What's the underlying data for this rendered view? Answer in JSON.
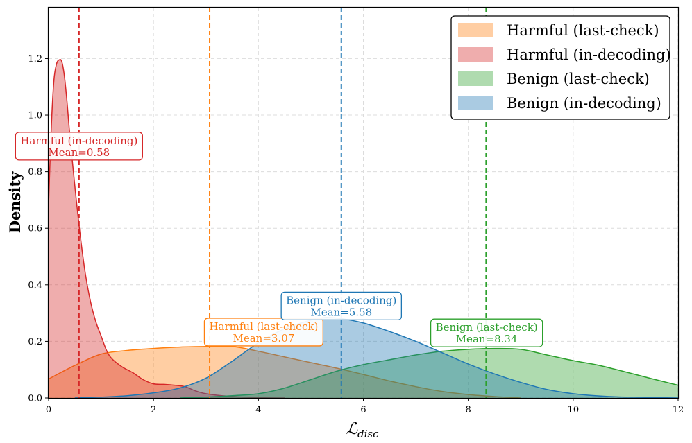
{
  "chart_data": {
    "type": "area",
    "xlabel": "ℒ",
    "xlabel_sub": "disc",
    "ylabel": "Density",
    "xlim": [
      0,
      12
    ],
    "ylim": [
      0,
      1.38
    ],
    "xticks": [
      0,
      2,
      4,
      6,
      8,
      10,
      12
    ],
    "yticks": [
      0.0,
      0.2,
      0.4,
      0.6,
      0.8,
      1.0,
      1.2
    ],
    "xtick_labels": [
      "0",
      "2",
      "4",
      "6",
      "8",
      "10",
      "12"
    ],
    "ytick_labels": [
      "0.0",
      "0.2",
      "0.4",
      "0.6",
      "0.8",
      "1.0",
      "1.2"
    ],
    "grid": true,
    "legend_position": "top-right",
    "series": [
      {
        "name": "Harmful (last-check)",
        "color": "#ff7f0e",
        "mean": 3.07,
        "mean_label": "Mean=3.07",
        "anno_title": "Harmful (last-check)",
        "anno_at": [
          4.1,
          0.233
        ],
        "x": [
          0,
          0.5,
          1.0,
          1.5,
          2.0,
          2.5,
          3.0,
          3.5,
          4.0,
          4.5,
          5.0,
          5.5,
          6.0,
          6.5,
          7.0,
          7.5,
          8.0,
          8.5,
          9.0
        ],
        "y": [
          0.067,
          0.115,
          0.155,
          0.168,
          0.175,
          0.18,
          0.182,
          0.182,
          0.165,
          0.145,
          0.125,
          0.105,
          0.083,
          0.06,
          0.04,
          0.023,
          0.012,
          0.005,
          0.0
        ]
      },
      {
        "name": "Harmful (in-decoding)",
        "color": "#d62728",
        "mean": 0.58,
        "mean_label": "Mean=0.58",
        "anno_title": "Harmful (in-decoding)",
        "anno_at": [
          0.58,
          0.89
        ],
        "x": [
          0,
          0.05,
          0.1,
          0.15,
          0.2,
          0.25,
          0.3,
          0.35,
          0.4,
          0.5,
          0.6,
          0.7,
          0.8,
          0.9,
          1.0,
          1.1,
          1.2,
          1.4,
          1.6,
          1.8,
          2.0,
          2.2,
          2.4,
          2.6,
          2.8,
          3.0,
          3.3,
          3.6,
          4.0,
          4.5
        ],
        "y": [
          0.68,
          0.95,
          1.12,
          1.18,
          1.195,
          1.19,
          1.14,
          1.05,
          0.94,
          0.75,
          0.58,
          0.44,
          0.34,
          0.27,
          0.22,
          0.17,
          0.14,
          0.11,
          0.09,
          0.065,
          0.05,
          0.048,
          0.045,
          0.04,
          0.025,
          0.015,
          0.008,
          0.004,
          0.001,
          0.0
        ]
      },
      {
        "name": "Benign (last-check)",
        "color": "#2ca02c",
        "mean": 8.34,
        "mean_label": "Mean=8.34",
        "anno_title": "Benign (last-check)",
        "anno_at": [
          8.35,
          0.23
        ],
        "x": [
          2.5,
          3.0,
          3.5,
          4.0,
          4.5,
          5.0,
          5.5,
          6.0,
          6.5,
          7.0,
          7.5,
          8.0,
          8.5,
          9.0,
          9.5,
          10.0,
          10.5,
          11.0,
          11.5,
          12.0
        ],
        "y": [
          0.0,
          0.003,
          0.008,
          0.015,
          0.035,
          0.065,
          0.095,
          0.118,
          0.135,
          0.152,
          0.165,
          0.172,
          0.175,
          0.172,
          0.152,
          0.132,
          0.115,
          0.092,
          0.068,
          0.045
        ]
      },
      {
        "name": "Benign (in-decoding)",
        "color": "#1f77b4",
        "mean": 5.58,
        "mean_label": "Mean=5.58",
        "anno_title": "Benign (in-decoding)",
        "anno_at": [
          5.58,
          0.325
        ],
        "x": [
          0.5,
          1.0,
          1.5,
          2.0,
          2.5,
          3.0,
          3.5,
          4.0,
          4.5,
          5.0,
          5.3,
          5.6,
          6.0,
          6.5,
          7.0,
          7.5,
          8.0,
          8.5,
          9.0,
          9.5,
          10.0,
          10.5,
          11.0,
          12.0
        ],
        "y": [
          0.0,
          0.003,
          0.008,
          0.018,
          0.035,
          0.07,
          0.13,
          0.195,
          0.245,
          0.275,
          0.285,
          0.28,
          0.265,
          0.235,
          0.2,
          0.16,
          0.12,
          0.085,
          0.055,
          0.03,
          0.015,
          0.007,
          0.003,
          0.0
        ]
      }
    ]
  }
}
